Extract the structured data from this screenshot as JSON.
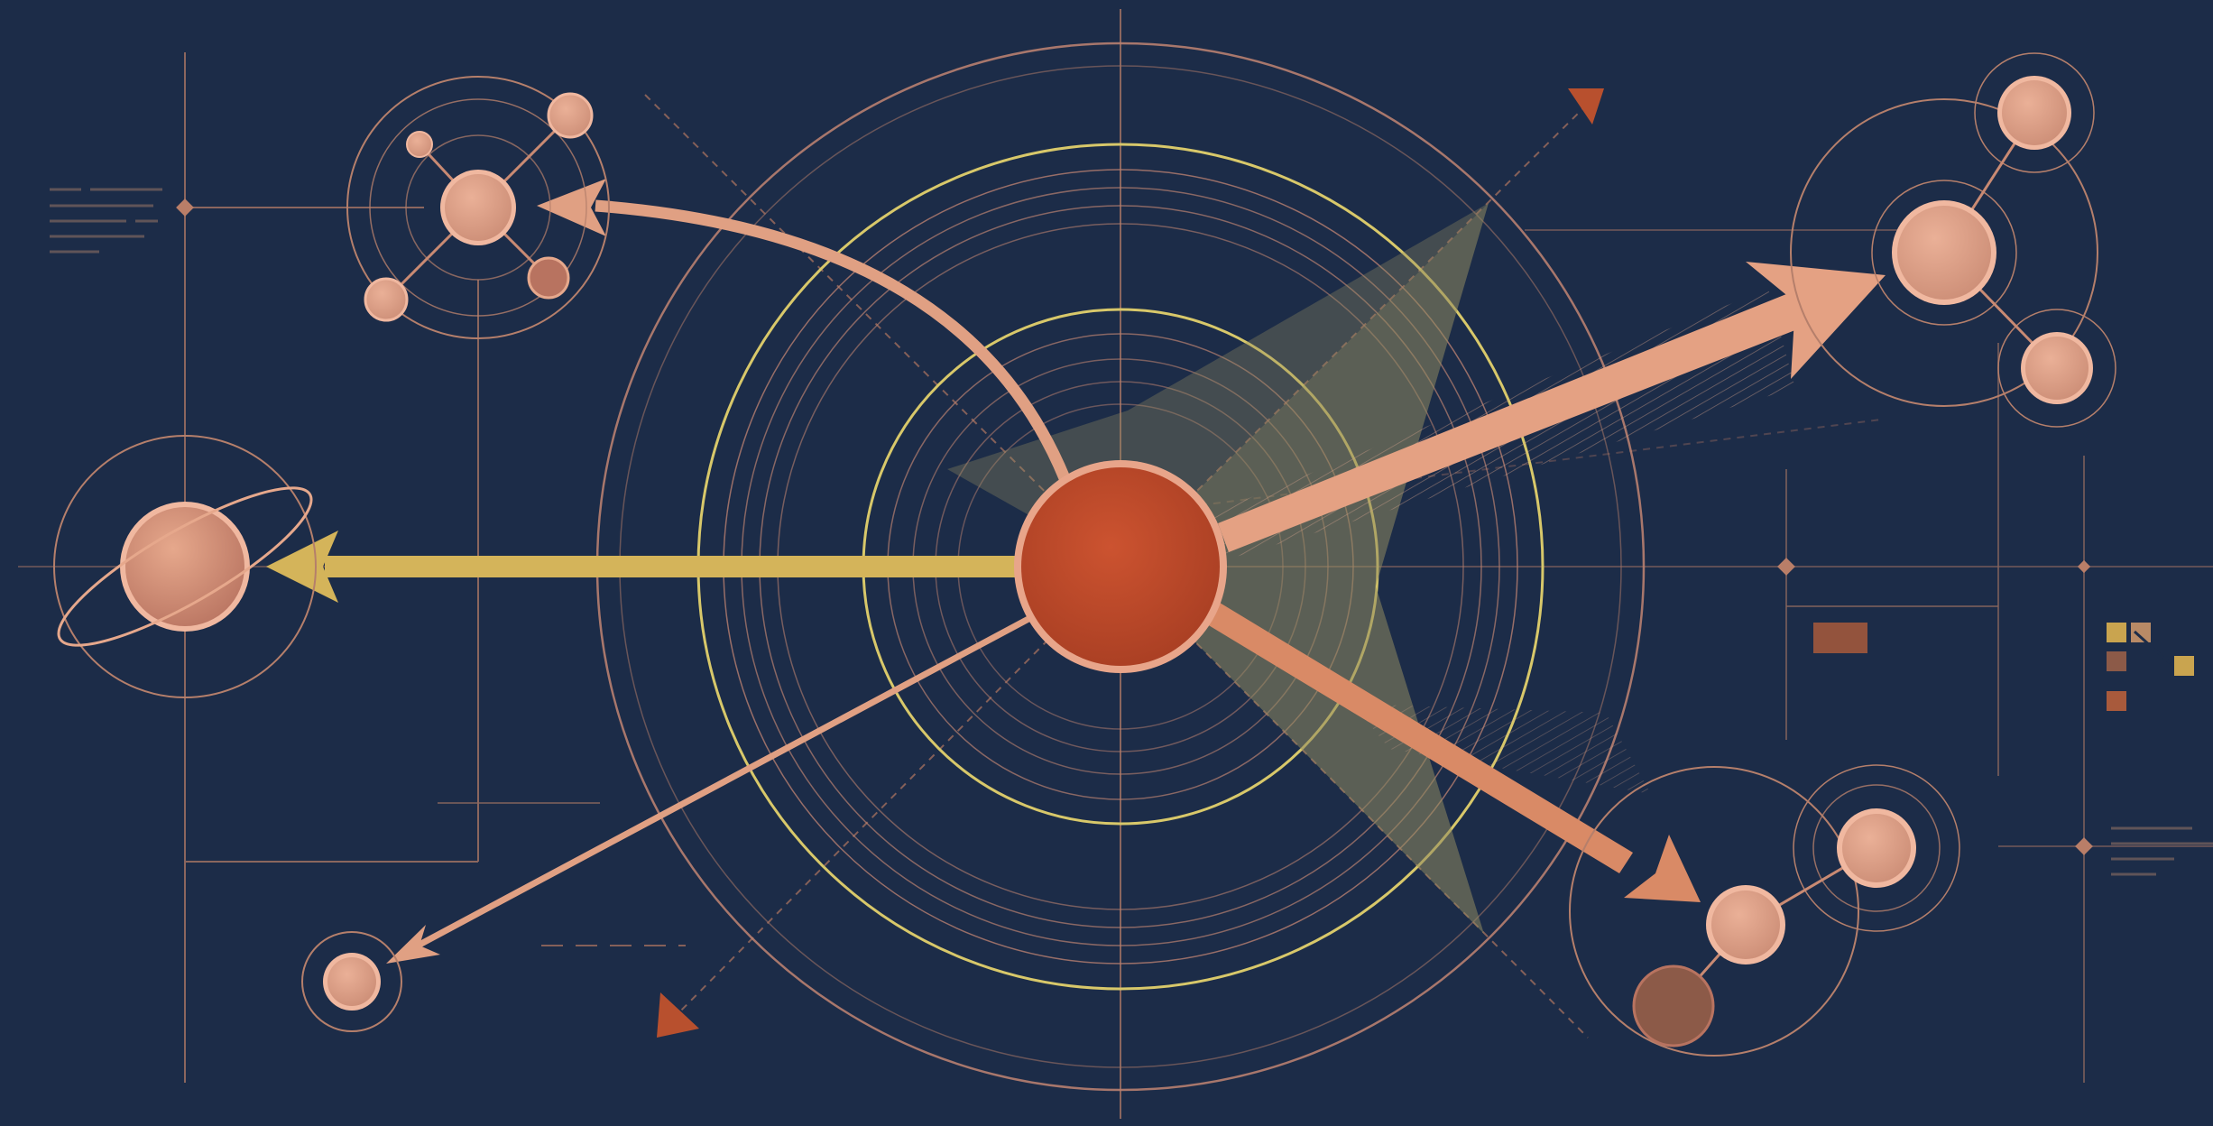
{
  "scene": {
    "description_free": true,
    "colors": {
      "background": "#1c2c48",
      "line": "#b57f6b",
      "line_faint": "#8a6a62",
      "gold": "#d4b45a",
      "gold_ring": "#d8c86a",
      "copper": "#e4a183",
      "copper_dark": "#c8806a",
      "core": "#c04a2a",
      "core_rim": "#e8a58a",
      "cone_fill": "#8f8a60",
      "marker": "#b8502e",
      "legend_gold": "#c9a44f",
      "legend_tan": "#b88a66",
      "legend_brown": "#8c5a48",
      "legend_rust": "#a85a3c"
    },
    "icons": {
      "core": "core-node-icon",
      "planet": "ringed-planet-icon",
      "cluster": "node-cluster-icon",
      "marker": "triangle-marker-icon"
    }
  }
}
